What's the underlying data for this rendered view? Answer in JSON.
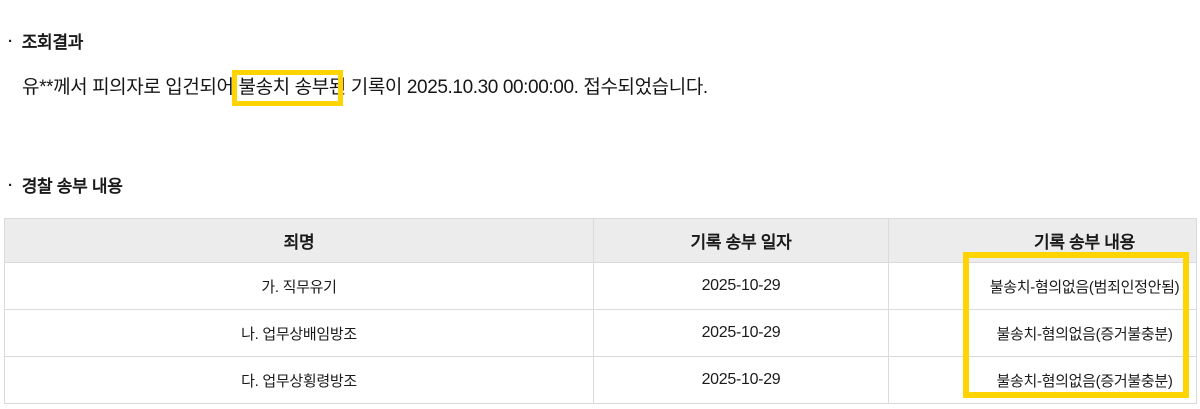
{
  "result": {
    "bullet": "·",
    "title": "조회결과",
    "message_parts": {
      "before": "유**께서 피의자로 입건되어 ",
      "highlight": "불송치 송부",
      "after": "된 기록이 2025.10.30 00:00:00. 접수되었습니다."
    }
  },
  "police": {
    "bullet": "·",
    "title": "경찰 송부 내용",
    "table": {
      "headers": [
        "죄명",
        "기록 송부 일자",
        "기록 송부 내용"
      ],
      "rows": [
        [
          "가. 직무유기",
          "2025-10-29",
          "불송치-혐의없음(범죄인정안됨)"
        ],
        [
          "나. 업무상배임방조",
          "2025-10-29",
          "불송치-혐의없음(증거불충분)"
        ],
        [
          "다. 업무상횡령방조",
          "2025-10-29",
          "불송치-혐의없음(증거불충분)"
        ]
      ]
    }
  },
  "colors": {
    "highlight_box": "#FFD400",
    "table_header_bg": "#ECECEC",
    "table_border": "#DBDBDB",
    "text": "#1B1B1B"
  }
}
